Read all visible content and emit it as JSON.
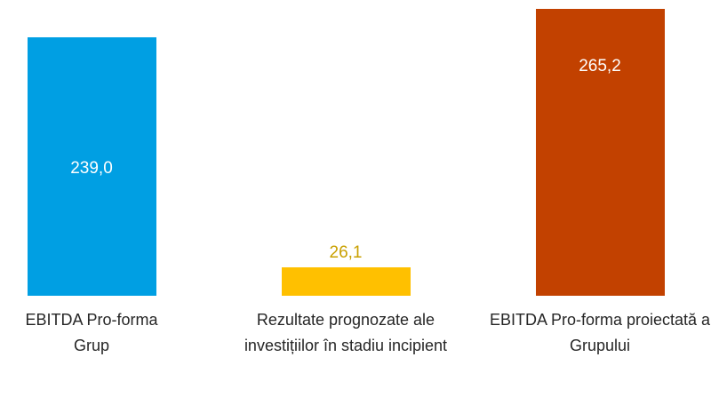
{
  "chart_data": {
    "type": "bar",
    "categories": [
      "EBITDA Pro-forma Grup",
      "Rezultate prognozate ale investițiilor în stadiu incipient",
      "EBITDA Pro-forma proiectată a Grupului"
    ],
    "values": [
      239.0,
      26.1,
      265.2
    ],
    "value_labels": [
      "239,0",
      "26,1",
      "265,2"
    ],
    "colors": [
      "#009fe3",
      "#ffc000",
      "#c24100"
    ]
  }
}
